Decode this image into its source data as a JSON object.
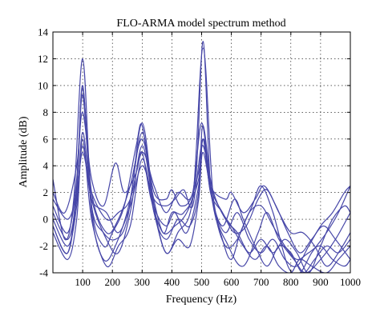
{
  "chart_data": {
    "type": "line",
    "title": "FLO-ARMA model spectrum method",
    "xlabel": "Frequency (Hz)",
    "ylabel": "Amplitude (dB)",
    "xlim": [
      0,
      1000
    ],
    "ylim": [
      -4,
      14
    ],
    "x_ticks": [
      100,
      200,
      300,
      400,
      500,
      600,
      700,
      800,
      900,
      1000
    ],
    "y_ticks": [
      -4,
      -2,
      0,
      2,
      4,
      6,
      8,
      10,
      12,
      14
    ],
    "grid": true,
    "line_color": "#4747a8",
    "series": [
      {
        "values": [
          [
            0,
            3.0
          ],
          [
            40,
            -1.5
          ],
          [
            70,
            1.5
          ],
          [
            100,
            12.0
          ],
          [
            130,
            1.0
          ],
          [
            170,
            -2.0
          ],
          [
            200,
            -1.0
          ],
          [
            240,
            1.0
          ],
          [
            280,
            5.5
          ],
          [
            300,
            7.0
          ],
          [
            330,
            2.5
          ],
          [
            370,
            -1.0
          ],
          [
            400,
            0.5
          ],
          [
            440,
            0.5
          ],
          [
            480,
            3.0
          ],
          [
            505,
            13.3
          ],
          [
            530,
            2.5
          ],
          [
            570,
            -1.5
          ],
          [
            600,
            -3.0
          ],
          [
            630,
            -1.0
          ],
          [
            670,
            1.0
          ],
          [
            700,
            2.5
          ],
          [
            740,
            0.5
          ],
          [
            790,
            -3.5
          ],
          [
            830,
            -4.0
          ],
          [
            870,
            -2.5
          ],
          [
            920,
            -1.0
          ],
          [
            960,
            0.5
          ],
          [
            1000,
            2.5
          ]
        ]
      },
      {
        "values": [
          [
            0,
            -0.5
          ],
          [
            50,
            -2.5
          ],
          [
            80,
            2.0
          ],
          [
            100,
            10.0
          ],
          [
            130,
            0.5
          ],
          [
            170,
            -3.0
          ],
          [
            210,
            -2.0
          ],
          [
            260,
            1.5
          ],
          [
            300,
            7.2
          ],
          [
            340,
            1.0
          ],
          [
            380,
            -2.5
          ],
          [
            420,
            -1.0
          ],
          [
            470,
            1.5
          ],
          [
            505,
            12.8
          ],
          [
            540,
            1.5
          ],
          [
            590,
            -2.0
          ],
          [
            640,
            -3.5
          ],
          [
            690,
            -1.0
          ],
          [
            720,
            0.5
          ],
          [
            760,
            -1.5
          ],
          [
            810,
            -3.0
          ],
          [
            850,
            -4.0
          ],
          [
            900,
            -3.0
          ],
          [
            950,
            -1.5
          ],
          [
            1000,
            0.5
          ]
        ]
      },
      {
        "values": [
          [
            0,
            1.0
          ],
          [
            50,
            -1.0
          ],
          [
            80,
            3.0
          ],
          [
            100,
            9.8
          ],
          [
            130,
            2.0
          ],
          [
            180,
            -1.0
          ],
          [
            220,
            0.0
          ],
          [
            260,
            2.5
          ],
          [
            300,
            6.0
          ],
          [
            340,
            2.0
          ],
          [
            380,
            1.5
          ],
          [
            400,
            2.2
          ],
          [
            430,
            1.0
          ],
          [
            470,
            2.0
          ],
          [
            500,
            7.2
          ],
          [
            530,
            2.5
          ],
          [
            570,
            0.5
          ],
          [
            600,
            -0.5
          ],
          [
            640,
            -2.0
          ],
          [
            680,
            -3.0
          ],
          [
            720,
            -2.0
          ],
          [
            760,
            -3.5
          ],
          [
            800,
            -4.0
          ],
          [
            830,
            -3.0
          ],
          [
            870,
            -3.5
          ],
          [
            920,
            -4.0
          ],
          [
            960,
            -3.0
          ],
          [
            1000,
            -2.0
          ]
        ]
      },
      {
        "values": [
          [
            0,
            2.0
          ],
          [
            40,
            0.5
          ],
          [
            80,
            4.0
          ],
          [
            100,
            8.0
          ],
          [
            130,
            3.0
          ],
          [
            170,
            1.0
          ],
          [
            210,
            4.2
          ],
          [
            240,
            2.0
          ],
          [
            280,
            3.5
          ],
          [
            300,
            5.0
          ],
          [
            330,
            1.5
          ],
          [
            370,
            -1.0
          ],
          [
            410,
            -0.5
          ],
          [
            450,
            0.5
          ],
          [
            490,
            3.0
          ],
          [
            505,
            6.0
          ],
          [
            530,
            2.5
          ],
          [
            580,
            1.5
          ],
          [
            600,
            2.0
          ],
          [
            640,
            0.5
          ],
          [
            680,
            1.5
          ],
          [
            710,
            2.5
          ],
          [
            750,
            1.0
          ],
          [
            790,
            -1.0
          ],
          [
            830,
            -2.5
          ],
          [
            870,
            -1.5
          ],
          [
            910,
            -0.5
          ],
          [
            950,
            -1.5
          ],
          [
            1000,
            -3.0
          ]
        ]
      },
      {
        "values": [
          [
            0,
            0.0
          ],
          [
            50,
            -2.0
          ],
          [
            80,
            1.0
          ],
          [
            100,
            6.5
          ],
          [
            130,
            1.5
          ],
          [
            180,
            -1.5
          ],
          [
            220,
            -2.5
          ],
          [
            260,
            0.5
          ],
          [
            300,
            5.5
          ],
          [
            340,
            1.0
          ],
          [
            380,
            -0.5
          ],
          [
            410,
            0.5
          ],
          [
            450,
            -1.0
          ],
          [
            490,
            2.5
          ],
          [
            505,
            6.0
          ],
          [
            530,
            2.0
          ],
          [
            570,
            -0.5
          ],
          [
            610,
            1.5
          ],
          [
            640,
            0.0
          ],
          [
            680,
            -2.0
          ],
          [
            720,
            -3.5
          ],
          [
            760,
            -2.0
          ],
          [
            800,
            -2.5
          ],
          [
            840,
            -4.0
          ],
          [
            880,
            -3.0
          ],
          [
            920,
            -2.0
          ],
          [
            960,
            -2.5
          ],
          [
            1000,
            -1.5
          ]
        ]
      },
      {
        "values": [
          [
            0,
            -1.0
          ],
          [
            50,
            -3.0
          ],
          [
            80,
            0.0
          ],
          [
            100,
            6.0
          ],
          [
            130,
            0.0
          ],
          [
            180,
            -3.5
          ],
          [
            220,
            -2.0
          ],
          [
            260,
            -0.5
          ],
          [
            300,
            4.5
          ],
          [
            340,
            0.5
          ],
          [
            380,
            -2.5
          ],
          [
            420,
            -1.5
          ],
          [
            460,
            -2.0
          ],
          [
            490,
            1.5
          ],
          [
            505,
            5.0
          ],
          [
            540,
            1.0
          ],
          [
            580,
            -1.0
          ],
          [
            620,
            0.5
          ],
          [
            660,
            -1.5
          ],
          [
            700,
            -2.5
          ],
          [
            740,
            -1.5
          ],
          [
            780,
            -3.0
          ],
          [
            820,
            -3.5
          ],
          [
            860,
            -2.0
          ],
          [
            900,
            -0.5
          ],
          [
            940,
            0.5
          ],
          [
            980,
            2.0
          ],
          [
            1000,
            2.5
          ]
        ]
      },
      {
        "values": [
          [
            0,
            0.5
          ],
          [
            50,
            -1.5
          ],
          [
            80,
            1.5
          ],
          [
            100,
            5.5
          ],
          [
            130,
            1.5
          ],
          [
            180,
            0.5
          ],
          [
            220,
            -1.0
          ],
          [
            260,
            1.0
          ],
          [
            300,
            4.0
          ],
          [
            340,
            1.5
          ],
          [
            380,
            1.0
          ],
          [
            410,
            1.5
          ],
          [
            440,
            2.2
          ],
          [
            470,
            1.0
          ],
          [
            505,
            6.0
          ],
          [
            530,
            2.0
          ],
          [
            570,
            0.5
          ],
          [
            610,
            -1.0
          ],
          [
            650,
            -0.5
          ],
          [
            690,
            1.5
          ],
          [
            720,
            2.2
          ],
          [
            760,
            0.5
          ],
          [
            800,
            -1.0
          ],
          [
            840,
            -1.0
          ],
          [
            880,
            -2.0
          ],
          [
            920,
            -3.5
          ],
          [
            960,
            -2.5
          ],
          [
            1000,
            -1.0
          ]
        ]
      },
      {
        "values": [
          [
            0,
            -0.5
          ],
          [
            50,
            -2.5
          ],
          [
            80,
            2.5
          ],
          [
            100,
            9.3
          ],
          [
            130,
            1.0
          ],
          [
            170,
            -1.0
          ],
          [
            210,
            -1.5
          ],
          [
            250,
            0.0
          ],
          [
            300,
            6.5
          ],
          [
            340,
            0.5
          ],
          [
            380,
            -1.5
          ],
          [
            420,
            0.0
          ],
          [
            460,
            -0.5
          ],
          [
            490,
            2.0
          ],
          [
            505,
            7.0
          ],
          [
            540,
            1.0
          ],
          [
            580,
            -2.0
          ],
          [
            620,
            -1.5
          ],
          [
            660,
            0.5
          ],
          [
            700,
            1.0
          ],
          [
            740,
            -0.5
          ],
          [
            780,
            -2.0
          ],
          [
            820,
            -3.0
          ],
          [
            860,
            -2.5
          ],
          [
            900,
            -2.0
          ],
          [
            940,
            -3.0
          ],
          [
            980,
            -3.5
          ],
          [
            1000,
            -3.0
          ]
        ]
      },
      {
        "values": [
          [
            0,
            1.5
          ],
          [
            50,
            0.0
          ],
          [
            80,
            2.0
          ],
          [
            100,
            5.0
          ],
          [
            130,
            2.0
          ],
          [
            180,
            0.0
          ],
          [
            220,
            0.5
          ],
          [
            260,
            1.5
          ],
          [
            300,
            5.0
          ],
          [
            340,
            2.5
          ],
          [
            380,
            0.5
          ],
          [
            420,
            2.0
          ],
          [
            460,
            1.5
          ],
          [
            490,
            3.5
          ],
          [
            505,
            5.5
          ],
          [
            540,
            2.0
          ],
          [
            580,
            0.0
          ],
          [
            620,
            -1.0
          ],
          [
            660,
            -2.5
          ],
          [
            700,
            -1.5
          ],
          [
            740,
            -2.5
          ],
          [
            780,
            -1.5
          ],
          [
            820,
            -2.5
          ],
          [
            860,
            -4.0
          ],
          [
            900,
            -2.0
          ],
          [
            940,
            0.0
          ],
          [
            980,
            1.0
          ],
          [
            1000,
            0.5
          ]
        ]
      }
    ]
  }
}
